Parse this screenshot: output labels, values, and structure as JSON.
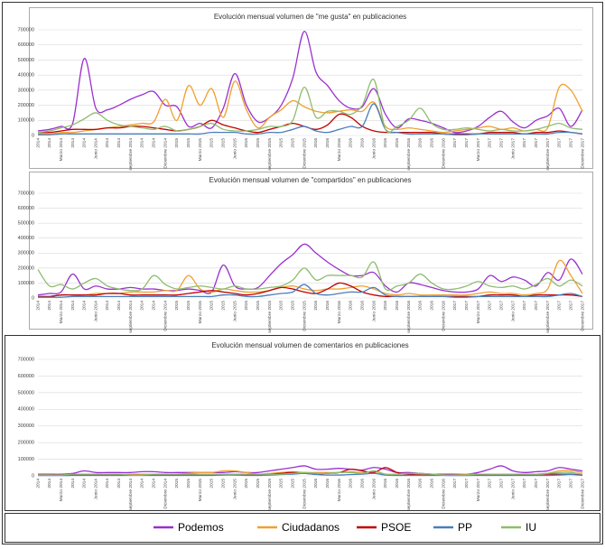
{
  "legend": [
    {
      "name": "Podemos",
      "color": "#9b30d0"
    },
    {
      "name": "Ciudadanos",
      "color": "#f0a030"
    },
    {
      "name": "PSOE",
      "color": "#c00000"
    },
    {
      "name": "PP",
      "color": "#4a7ebb"
    },
    {
      "name": "IU",
      "color": "#8fbc6f"
    }
  ],
  "chart_data": [
    {
      "type": "line",
      "title": "Evolución mensual volumen de \"me gusta\" en publicaciones",
      "categories": [
        "2014",
        "2014",
        "Marzo 2014",
        "2014",
        "2014",
        "Junio 2014",
        "2014",
        "2014",
        "septiembre 2014",
        "2014",
        "2014",
        "Diciembre 2014",
        "2015",
        "2015",
        "Marzo 2015",
        "2015",
        "2015",
        "Junio 2015",
        "2015",
        "2015",
        "septiembre 2015",
        "2015",
        "2015",
        "Diciembre 2015",
        "2016",
        "2016",
        "Marzo 2016",
        "2016",
        "2016",
        "Junio 2016",
        "2016",
        "2016",
        "septiembre 2016",
        "2016",
        "2016",
        "Diciembre 2016",
        "2017",
        "2017",
        "Marzo 2017",
        "2017",
        "2017",
        "Junio 2017",
        "2017",
        "2017",
        "septiembre 2017",
        "2017",
        "2017",
        "Diciembre 2017"
      ],
      "ylim": [
        0,
        700000
      ],
      "yticks": [
        0,
        100000,
        200000,
        300000,
        400000,
        500000,
        600000,
        700000
      ],
      "grid": true,
      "series": [
        {
          "values": [
            30000,
            40000,
            60000,
            80000,
            510000,
            180000,
            170000,
            200000,
            240000,
            270000,
            290000,
            200000,
            190000,
            60000,
            80000,
            50000,
            180000,
            410000,
            200000,
            90000,
            120000,
            200000,
            380000,
            690000,
            420000,
            330000,
            230000,
            180000,
            190000,
            310000,
            140000,
            50000,
            110000,
            100000,
            80000,
            50000,
            20000,
            30000,
            60000,
            120000,
            160000,
            90000,
            50000,
            100000,
            130000,
            180000,
            60000,
            170000
          ]
        },
        {
          "values": [
            10000,
            10000,
            20000,
            20000,
            30000,
            40000,
            50000,
            60000,
            70000,
            80000,
            90000,
            240000,
            100000,
            330000,
            200000,
            310000,
            120000,
            360000,
            170000,
            50000,
            120000,
            170000,
            230000,
            190000,
            160000,
            150000,
            160000,
            170000,
            160000,
            220000,
            60000,
            40000,
            50000,
            40000,
            30000,
            20000,
            30000,
            40000,
            50000,
            60000,
            40000,
            50000,
            30000,
            40000,
            50000,
            320000,
            300000,
            160000
          ]
        },
        {
          "values": [
            20000,
            20000,
            30000,
            40000,
            40000,
            40000,
            50000,
            50000,
            60000,
            60000,
            50000,
            40000,
            30000,
            40000,
            60000,
            100000,
            70000,
            50000,
            30000,
            20000,
            40000,
            60000,
            80000,
            60000,
            40000,
            70000,
            140000,
            120000,
            60000,
            30000,
            20000,
            20000,
            20000,
            20000,
            20000,
            10000,
            10000,
            10000,
            10000,
            20000,
            20000,
            20000,
            10000,
            20000,
            20000,
            30000,
            20000,
            10000
          ]
        },
        {
          "values": [
            5000,
            5000,
            10000,
            10000,
            10000,
            10000,
            10000,
            10000,
            10000,
            10000,
            10000,
            10000,
            10000,
            10000,
            10000,
            20000,
            20000,
            20000,
            10000,
            10000,
            20000,
            20000,
            40000,
            60000,
            30000,
            20000,
            40000,
            60000,
            60000,
            210000,
            40000,
            20000,
            10000,
            10000,
            10000,
            10000,
            5000,
            5000,
            10000,
            10000,
            10000,
            10000,
            10000,
            10000,
            10000,
            20000,
            20000,
            10000
          ]
        },
        {
          "values": [
            20000,
            30000,
            50000,
            70000,
            110000,
            150000,
            100000,
            70000,
            60000,
            50000,
            40000,
            60000,
            30000,
            40000,
            60000,
            80000,
            40000,
            30000,
            30000,
            40000,
            60000,
            60000,
            100000,
            320000,
            120000,
            160000,
            160000,
            140000,
            200000,
            370000,
            40000,
            60000,
            100000,
            180000,
            80000,
            40000,
            40000,
            50000,
            40000,
            30000,
            40000,
            30000,
            30000,
            40000,
            60000,
            80000,
            50000,
            40000
          ]
        }
      ]
    },
    {
      "type": "line",
      "title": "Evolución mensual volumen de \"compartidos\" en publicaciones",
      "categories": [
        "2014",
        "2014",
        "Marzo 2014",
        "2014",
        "2014",
        "Junio 2014",
        "2014",
        "2014",
        "septiembre 2014",
        "2014",
        "2014",
        "Diciembre 2014",
        "2015",
        "2015",
        "Marzo 2015",
        "2015",
        "2015",
        "Junio 2015",
        "2015",
        "2015",
        "septiembre 2015",
        "2015",
        "2015",
        "Diciembre 2015",
        "2016",
        "2016",
        "Marzo 2016",
        "2016",
        "2016",
        "Junio 2016",
        "2016",
        "2016",
        "septiembre 2016",
        "2016",
        "2016",
        "Diciembre 2016",
        "2017",
        "2017",
        "Marzo 2017",
        "2017",
        "2017",
        "Junio 2017",
        "2017",
        "2017",
        "septiembre 2017",
        "2017",
        "2017",
        "Diciembre 2017"
      ],
      "ylim": [
        0,
        700000
      ],
      "yticks": [
        0,
        100000,
        200000,
        300000,
        400000,
        500000,
        600000,
        700000
      ],
      "grid": true,
      "series": [
        {
          "values": [
            20000,
            30000,
            40000,
            160000,
            60000,
            80000,
            60000,
            60000,
            70000,
            60000,
            60000,
            50000,
            50000,
            60000,
            50000,
            40000,
            220000,
            80000,
            60000,
            70000,
            150000,
            230000,
            290000,
            360000,
            300000,
            240000,
            190000,
            150000,
            150000,
            170000,
            80000,
            40000,
            100000,
            90000,
            70000,
            50000,
            40000,
            40000,
            60000,
            150000,
            110000,
            140000,
            120000,
            80000,
            170000,
            120000,
            260000,
            160000
          ]
        },
        {
          "values": [
            10000,
            10000,
            20000,
            20000,
            20000,
            30000,
            30000,
            30000,
            40000,
            40000,
            40000,
            50000,
            50000,
            150000,
            60000,
            40000,
            60000,
            50000,
            40000,
            40000,
            50000,
            70000,
            80000,
            60000,
            50000,
            60000,
            60000,
            70000,
            80000,
            60000,
            30000,
            20000,
            30000,
            20000,
            20000,
            20000,
            20000,
            20000,
            30000,
            40000,
            30000,
            30000,
            20000,
            30000,
            60000,
            250000,
            150000,
            30000
          ]
        },
        {
          "values": [
            10000,
            10000,
            20000,
            20000,
            20000,
            20000,
            30000,
            30000,
            20000,
            20000,
            20000,
            20000,
            20000,
            30000,
            40000,
            50000,
            40000,
            30000,
            20000,
            30000,
            50000,
            70000,
            60000,
            40000,
            30000,
            60000,
            100000,
            80000,
            40000,
            20000,
            10000,
            10000,
            10000,
            10000,
            10000,
            10000,
            10000,
            10000,
            10000,
            20000,
            20000,
            20000,
            10000,
            20000,
            20000,
            20000,
            20000,
            10000
          ]
        },
        {
          "values": [
            5000,
            5000,
            5000,
            10000,
            10000,
            10000,
            10000,
            10000,
            10000,
            10000,
            10000,
            10000,
            10000,
            10000,
            10000,
            10000,
            20000,
            20000,
            10000,
            10000,
            20000,
            30000,
            40000,
            90000,
            30000,
            20000,
            30000,
            40000,
            40000,
            70000,
            20000,
            10000,
            10000,
            10000,
            10000,
            10000,
            5000,
            5000,
            10000,
            10000,
            10000,
            10000,
            10000,
            10000,
            10000,
            20000,
            30000,
            10000
          ]
        },
        {
          "values": [
            190000,
            80000,
            90000,
            60000,
            100000,
            130000,
            80000,
            60000,
            50000,
            60000,
            150000,
            90000,
            60000,
            70000,
            80000,
            70000,
            60000,
            80000,
            60000,
            60000,
            70000,
            80000,
            120000,
            200000,
            120000,
            150000,
            150000,
            150000,
            140000,
            240000,
            60000,
            80000,
            100000,
            160000,
            100000,
            60000,
            60000,
            80000,
            110000,
            80000,
            70000,
            80000,
            60000,
            90000,
            130000,
            80000,
            120000,
            80000
          ]
        }
      ]
    },
    {
      "type": "line",
      "title": "Evolución mensual volumen de comentarios en publicaciones",
      "categories": [
        "2014",
        "2014",
        "Marzo 2014",
        "2014",
        "2014",
        "Junio 2014",
        "2014",
        "2014",
        "septiembre 2014",
        "2014",
        "2014",
        "Diciembre 2014",
        "2015",
        "2015",
        "Marzo 2015",
        "2015",
        "2015",
        "Junio 2015",
        "2015",
        "2015",
        "septiembre 2015",
        "2015",
        "2015",
        "Diciembre 2015",
        "2016",
        "2016",
        "Marzo 2016",
        "2016",
        "2016",
        "Junio 2016",
        "2016",
        "2016",
        "septiembre 2016",
        "2016",
        "2016",
        "Diciembre 2016",
        "2017",
        "2017",
        "Marzo 2017",
        "2017",
        "2017",
        "Junio 2017",
        "2017",
        "2017",
        "septiembre 2017",
        "2017",
        "2017",
        "Diciembre 2017"
      ],
      "ylim": [
        0,
        700000
      ],
      "yticks": [
        0,
        100000,
        200000,
        300000,
        400000,
        500000,
        600000,
        700000
      ],
      "grid": true,
      "series": [
        {
          "values": [
            10000,
            10000,
            10000,
            15000,
            30000,
            20000,
            20000,
            20000,
            20000,
            25000,
            25000,
            20000,
            20000,
            20000,
            20000,
            20000,
            20000,
            25000,
            20000,
            20000,
            30000,
            40000,
            50000,
            60000,
            40000,
            40000,
            45000,
            40000,
            35000,
            50000,
            40000,
            20000,
            20000,
            15000,
            10000,
            10000,
            10000,
            10000,
            20000,
            40000,
            60000,
            30000,
            20000,
            25000,
            30000,
            50000,
            40000,
            30000
          ]
        },
        {
          "values": [
            5000,
            5000,
            5000,
            5000,
            5000,
            10000,
            10000,
            10000,
            10000,
            10000,
            10000,
            10000,
            10000,
            15000,
            20000,
            20000,
            30000,
            30000,
            20000,
            10000,
            15000,
            20000,
            25000,
            20000,
            20000,
            20000,
            20000,
            25000,
            20000,
            25000,
            10000,
            10000,
            10000,
            10000,
            10000,
            5000,
            5000,
            10000,
            10000,
            10000,
            10000,
            10000,
            10000,
            10000,
            15000,
            30000,
            30000,
            20000
          ]
        },
        {
          "values": [
            5000,
            5000,
            5000,
            5000,
            5000,
            5000,
            5000,
            5000,
            5000,
            5000,
            5000,
            5000,
            5000,
            5000,
            10000,
            10000,
            10000,
            10000,
            5000,
            5000,
            10000,
            15000,
            20000,
            15000,
            10000,
            15000,
            20000,
            40000,
            30000,
            20000,
            50000,
            20000,
            10000,
            5000,
            5000,
            5000,
            5000,
            5000,
            5000,
            10000,
            10000,
            10000,
            5000,
            10000,
            10000,
            10000,
            10000,
            5000
          ]
        },
        {
          "values": [
            2000,
            2000,
            2000,
            3000,
            3000,
            3000,
            3000,
            3000,
            3000,
            3000,
            3000,
            3000,
            3000,
            3000,
            3000,
            3000,
            5000,
            5000,
            3000,
            3000,
            5000,
            8000,
            10000,
            15000,
            8000,
            5000,
            5000,
            8000,
            10000,
            15000,
            5000,
            3000,
            3000,
            3000,
            3000,
            3000,
            2000,
            2000,
            3000,
            3000,
            3000,
            3000,
            3000,
            3000,
            3000,
            5000,
            8000,
            3000
          ]
        },
        {
          "values": [
            5000,
            5000,
            5000,
            10000,
            10000,
            10000,
            10000,
            10000,
            5000,
            5000,
            10000,
            10000,
            10000,
            10000,
            10000,
            10000,
            10000,
            10000,
            10000,
            10000,
            10000,
            10000,
            15000,
            20000,
            15000,
            15000,
            20000,
            20000,
            15000,
            30000,
            10000,
            10000,
            15000,
            15000,
            10000,
            5000,
            5000,
            5000,
            10000,
            10000,
            10000,
            10000,
            10000,
            10000,
            15000,
            20000,
            20000,
            10000
          ]
        }
      ]
    }
  ]
}
